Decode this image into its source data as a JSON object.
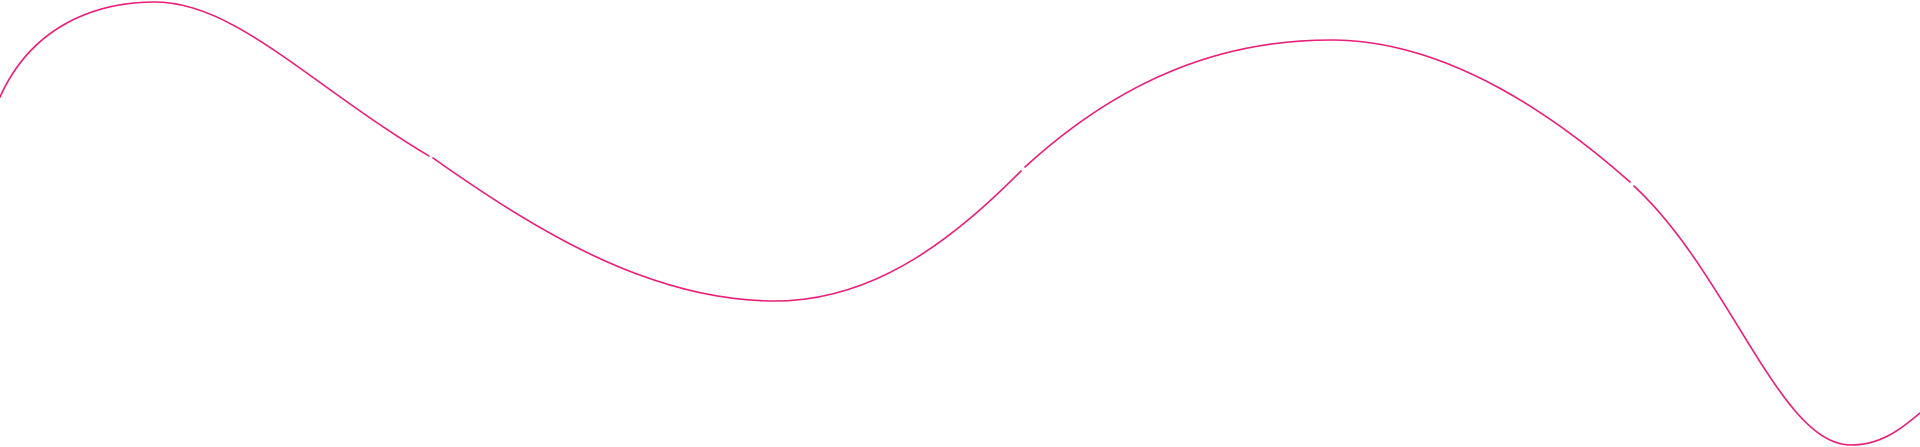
{
  "decoration": {
    "type": "wavy-line",
    "stroke_color": "#e91e78",
    "background_color": "#ffffff",
    "segments": 4
  }
}
